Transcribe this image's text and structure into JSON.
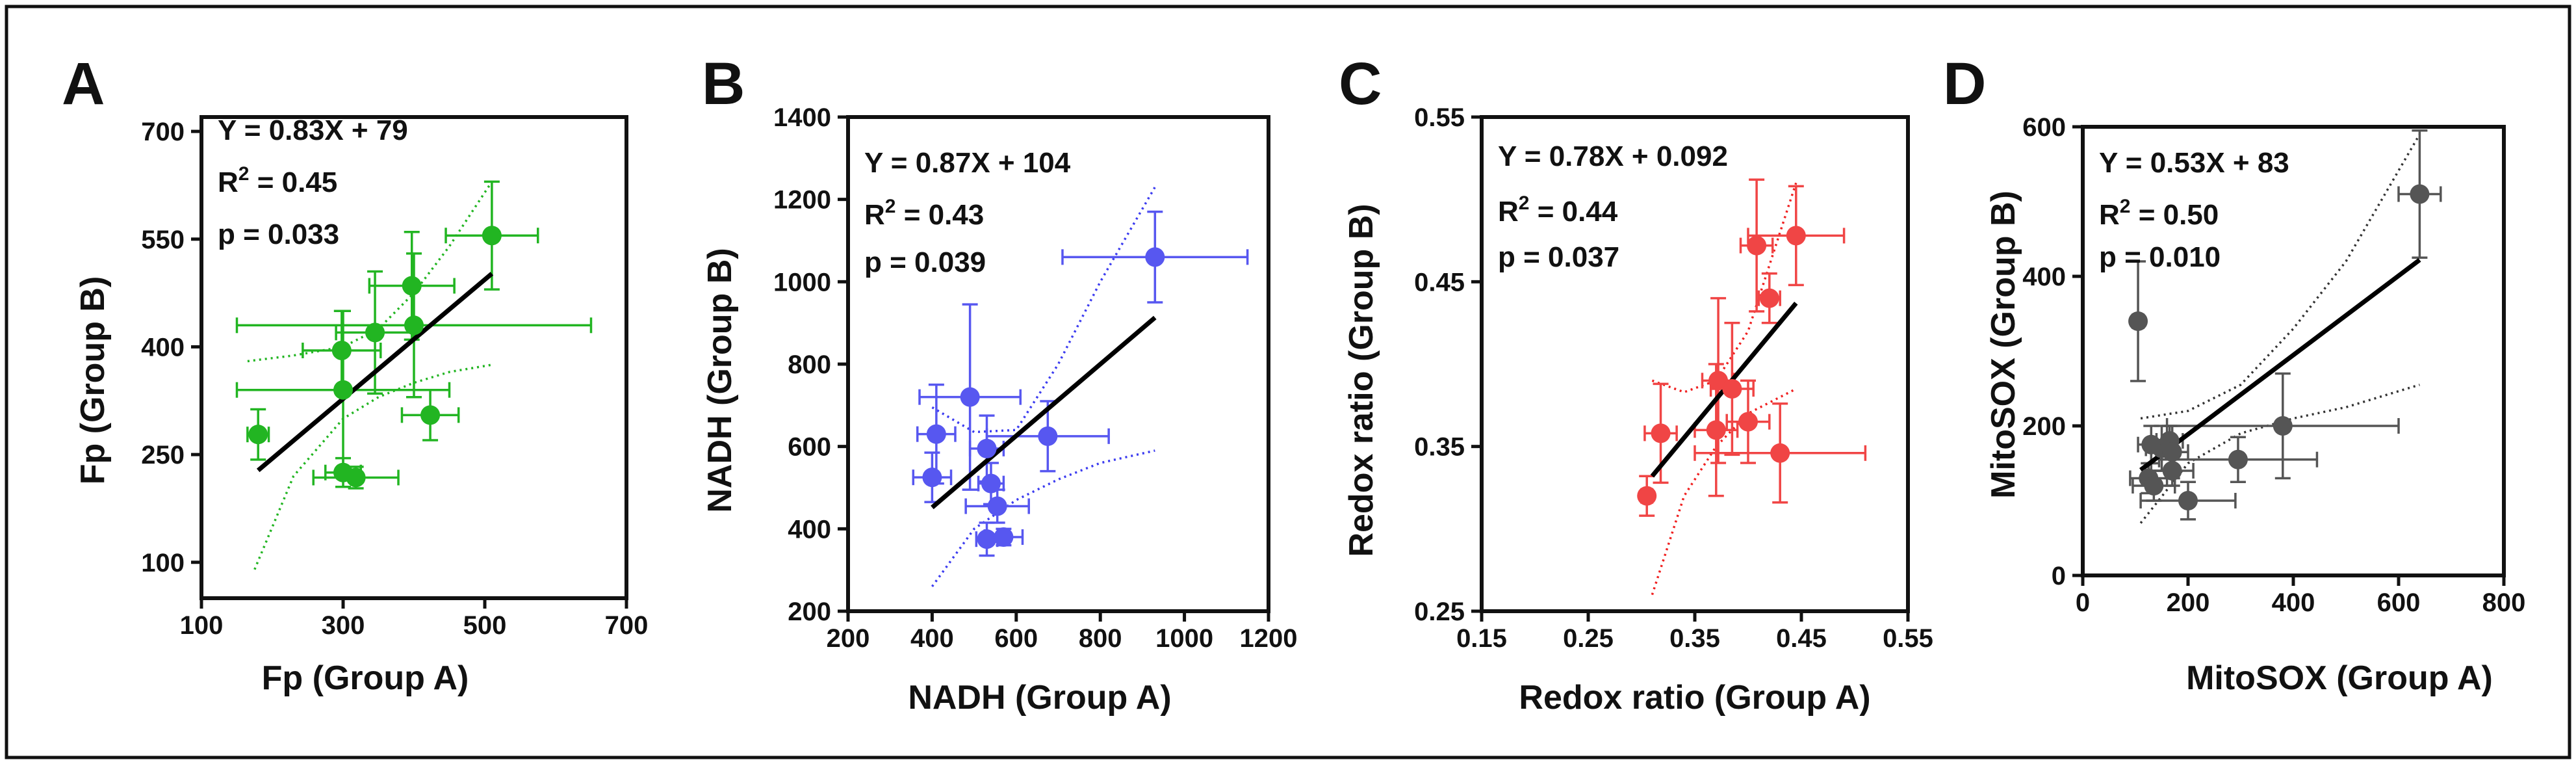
{
  "colors": {
    "frame": "#111111",
    "fit_line": "#000000"
  },
  "chart_data": [
    {
      "type": "scatter",
      "panel": "A",
      "xlabel": "Fp (Group A)",
      "ylabel": "Fp (Group B)",
      "xlim": [
        100,
        700
      ],
      "ylim": [
        50,
        720
      ],
      "xticks": [
        100,
        300,
        500,
        700
      ],
      "yticks": [
        100,
        250,
        400,
        550,
        700
      ],
      "equation": "Y = 0.83X + 79",
      "r2_label": "R",
      "r2_sup": "2",
      "r2_value": " = 0.45",
      "p_value": "p = 0.033",
      "color": "#22b522",
      "ci_color": "#22b522",
      "fit": {
        "x": [
          180,
          510
        ],
        "y": [
          228,
          502
        ]
      },
      "ci_upper": {
        "x": [
          165,
          230,
          300,
          350,
          400,
          450,
          510
        ],
        "y": [
          380,
          388,
          400,
          425,
          475,
          540,
          630
        ]
      },
      "ci_lower": {
        "x": [
          175,
          230,
          300,
          350,
          400,
          450,
          510
        ],
        "y": [
          90,
          220,
          300,
          330,
          350,
          365,
          375
        ]
      },
      "points": [
        {
          "x": 180,
          "y": 278,
          "xerr": 15,
          "yerr": 35
        },
        {
          "x": 300,
          "y": 225,
          "xerr": 25,
          "yerr": 20
        },
        {
          "x": 318,
          "y": 218,
          "xerr": 60,
          "yerr": 15
        },
        {
          "x": 298,
          "y": 395,
          "xerr": 55,
          "yerr": 55
        },
        {
          "x": 300,
          "y": 340,
          "xerr": 150,
          "yerr": 110
        },
        {
          "x": 345,
          "y": 420,
          "xerr": 55,
          "yerr": 85
        },
        {
          "x": 400,
          "y": 430,
          "xerr": 250,
          "yerr": 100
        },
        {
          "x": 397,
          "y": 485,
          "xerr": 60,
          "yerr": 75
        },
        {
          "x": 423,
          "y": 305,
          "xerr": 40,
          "yerr": 35
        },
        {
          "x": 510,
          "y": 555,
          "xerr": 65,
          "yerr": 75
        }
      ]
    },
    {
      "type": "scatter",
      "panel": "B",
      "xlabel": "NADH (Group A)",
      "ylabel": "NADH (Group B)",
      "xlim": [
        200,
        1200
      ],
      "ylim": [
        200,
        1400
      ],
      "xticks": [
        200,
        400,
        600,
        800,
        1000,
        1200
      ],
      "yticks": [
        200,
        400,
        600,
        800,
        1000,
        1200,
        1400
      ],
      "equation": "Y = 0.87X + 104",
      "r2_label": "R",
      "r2_sup": "2",
      "r2_value": " = 0.43",
      "p_value": "p = 0.039",
      "color": "#5757f0",
      "ci_color": "#3c3cf0",
      "fit": {
        "x": [
          400,
          930
        ],
        "y": [
          452,
          913
        ]
      },
      "ci_upper": {
        "x": [
          400,
          500,
          600,
          700,
          800,
          930
        ],
        "y": [
          695,
          635,
          640,
          800,
          1000,
          1230
        ]
      },
      "ci_lower": {
        "x": [
          400,
          500,
          600,
          700,
          800,
          930
        ],
        "y": [
          260,
          400,
          470,
          520,
          560,
          590
        ]
      },
      "points": [
        {
          "x": 410,
          "y": 630,
          "xerr": 45,
          "yerr": 120
        },
        {
          "x": 400,
          "y": 525,
          "xerr": 45,
          "yerr": 60
        },
        {
          "x": 490,
          "y": 720,
          "xerr": 120,
          "yerr": 225
        },
        {
          "x": 530,
          "y": 595,
          "xerr": 40,
          "yerr": 80
        },
        {
          "x": 540,
          "y": 510,
          "xerr": 30,
          "yerr": 50
        },
        {
          "x": 555,
          "y": 455,
          "xerr": 75,
          "yerr": 40
        },
        {
          "x": 530,
          "y": 375,
          "xerr": 25,
          "yerr": 40
        },
        {
          "x": 570,
          "y": 380,
          "xerr": 45,
          "yerr": 20
        },
        {
          "x": 675,
          "y": 625,
          "xerr": 145,
          "yerr": 85
        },
        {
          "x": 930,
          "y": 1060,
          "xerr": 220,
          "yerr": 110
        }
      ]
    },
    {
      "type": "scatter",
      "panel": "C",
      "xlabel": "Redox ratio (Group A)",
      "ylabel": "Redox ratio (Group B)",
      "xlim": [
        0.15,
        0.55
      ],
      "ylim": [
        0.25,
        0.55
      ],
      "xticks": [
        0.15,
        0.25,
        0.35,
        0.45,
        0.55
      ],
      "yticks": [
        0.25,
        0.35,
        0.45,
        0.55
      ],
      "equation": "Y = 0.78X + 0.092",
      "r2_label": "R",
      "r2_sup": "2",
      "r2_value": " = 0.44",
      "p_value": "p = 0.037",
      "color": "#f04545",
      "ci_color": "#f02020",
      "fit": {
        "x": [
          0.31,
          0.445
        ],
        "y": [
          0.332,
          0.437
        ]
      },
      "ci_upper": {
        "x": [
          0.31,
          0.34,
          0.37,
          0.4,
          0.445
        ],
        "y": [
          0.39,
          0.383,
          0.39,
          0.42,
          0.51
        ]
      },
      "ci_lower": {
        "x": [
          0.31,
          0.34,
          0.37,
          0.4,
          0.445
        ],
        "y": [
          0.26,
          0.32,
          0.35,
          0.37,
          0.385
        ]
      },
      "points": [
        {
          "x": 0.305,
          "y": 0.32,
          "xerr": 0.005,
          "yerr": 0.012
        },
        {
          "x": 0.318,
          "y": 0.358,
          "xerr": 0.015,
          "yerr": 0.03
        },
        {
          "x": 0.37,
          "y": 0.36,
          "xerr": 0.02,
          "yerr": 0.04
        },
        {
          "x": 0.372,
          "y": 0.39,
          "xerr": 0.015,
          "yerr": 0.05
        },
        {
          "x": 0.385,
          "y": 0.385,
          "xerr": 0.02,
          "yerr": 0.04
        },
        {
          "x": 0.4,
          "y": 0.365,
          "xerr": 0.02,
          "yerr": 0.025
        },
        {
          "x": 0.43,
          "y": 0.346,
          "xerr": 0.08,
          "yerr": 0.03
        },
        {
          "x": 0.408,
          "y": 0.472,
          "xerr": 0.015,
          "yerr": 0.04
        },
        {
          "x": 0.42,
          "y": 0.44,
          "xerr": 0.01,
          "yerr": 0.015
        },
        {
          "x": 0.445,
          "y": 0.478,
          "xerr": 0.045,
          "yerr": 0.03
        }
      ]
    },
    {
      "type": "scatter",
      "panel": "D",
      "xlabel": "MitoSOX (Group A)",
      "ylabel": "MitoSOX (Group B)",
      "xlim": [
        0,
        800
      ],
      "ylim": [
        0,
        600
      ],
      "xticks": [
        0,
        200,
        400,
        600,
        800
      ],
      "yticks": [
        0,
        200,
        400,
        600
      ],
      "equation": "Y = 0.53X + 83",
      "r2_label": "R",
      "r2_sup": "2",
      "r2_value": " = 0.50",
      "p_value": "p = 0.010",
      "color": "#555555",
      "ci_color": "#333333",
      "fit": {
        "x": [
          110,
          640
        ],
        "y": [
          141,
          422
        ]
      },
      "ci_upper": {
        "x": [
          110,
          200,
          300,
          400,
          500,
          640
        ],
        "y": [
          210,
          220,
          255,
          330,
          420,
          590
        ]
      },
      "ci_lower": {
        "x": [
          110,
          200,
          300,
          400,
          500,
          640
        ],
        "y": [
          70,
          150,
          190,
          210,
          225,
          255
        ]
      },
      "points": [
        {
          "x": 105,
          "y": 340,
          "xerr": 10,
          "yerr": 80
        },
        {
          "x": 130,
          "y": 175,
          "xerr": 25,
          "yerr": 25
        },
        {
          "x": 150,
          "y": 170,
          "xerr": 30,
          "yerr": 30
        },
        {
          "x": 165,
          "y": 180,
          "xerr": 25,
          "yerr": 20
        },
        {
          "x": 170,
          "y": 165,
          "xerr": 30,
          "yerr": 35
        },
        {
          "x": 125,
          "y": 130,
          "xerr": 35,
          "yerr": 20
        },
        {
          "x": 135,
          "y": 120,
          "xerr": 40,
          "yerr": 20
        },
        {
          "x": 170,
          "y": 140,
          "xerr": 40,
          "yerr": 20
        },
        {
          "x": 200,
          "y": 100,
          "xerr": 90,
          "yerr": 25
        },
        {
          "x": 295,
          "y": 155,
          "xerr": 150,
          "yerr": 30
        },
        {
          "x": 380,
          "y": 200,
          "xerr": 220,
          "yerr": 70
        },
        {
          "x": 640,
          "y": 510,
          "xerr": 40,
          "yerr": 85
        }
      ]
    }
  ]
}
